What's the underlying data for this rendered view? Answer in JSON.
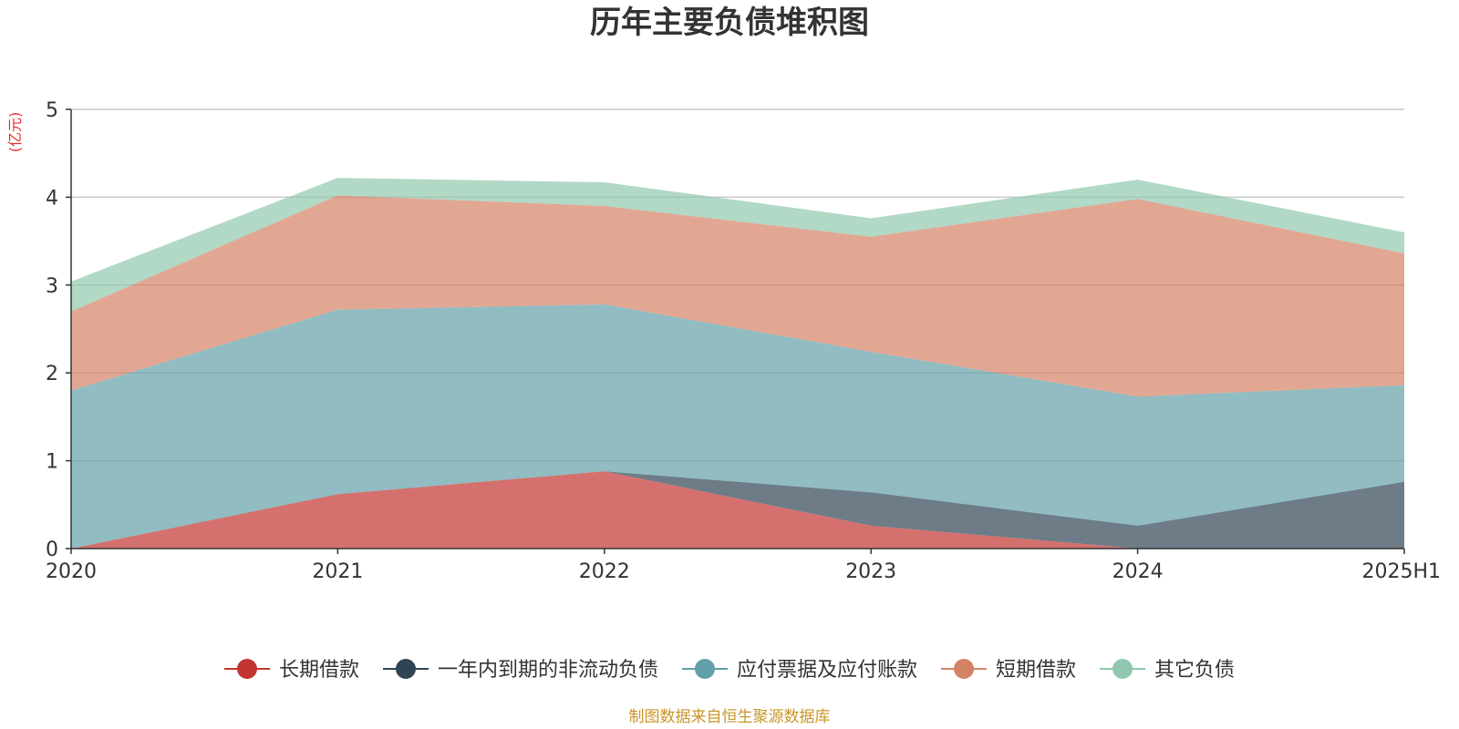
{
  "chart_data": {
    "type": "area",
    "stacked": true,
    "title": "历年主要负债堆积图",
    "unit_label": "(亿元)",
    "x": [
      "2020",
      "2021",
      "2022",
      "2023",
      "2024",
      "2025H1"
    ],
    "ylim": [
      0,
      5
    ],
    "yticks": [
      "0",
      "1",
      "2",
      "3",
      "4",
      "5"
    ],
    "grid": true,
    "legend_position": "bottom",
    "series": [
      {
        "name": "长期借款",
        "color": "#c23531",
        "values": [
          0.0,
          0.62,
          0.88,
          0.26,
          0.0,
          0.0
        ]
      },
      {
        "name": "一年内到期的非流动负债",
        "color": "#2f4554",
        "values": [
          0.0,
          0.0,
          0.0,
          0.38,
          0.26,
          0.76
        ]
      },
      {
        "name": "应付票据及应付账款",
        "color": "#61a0a8",
        "values": [
          1.8,
          2.1,
          1.9,
          1.6,
          1.47,
          1.1
        ]
      },
      {
        "name": "短期借款",
        "color": "#d48265",
        "values": [
          0.9,
          1.3,
          1.12,
          1.31,
          2.25,
          1.5
        ]
      },
      {
        "name": "其它负债",
        "color": "#91c7ae",
        "values": [
          0.34,
          0.2,
          0.27,
          0.21,
          0.22,
          0.24
        ]
      }
    ],
    "source_note": "制图数据来自恒生聚源数据库"
  }
}
